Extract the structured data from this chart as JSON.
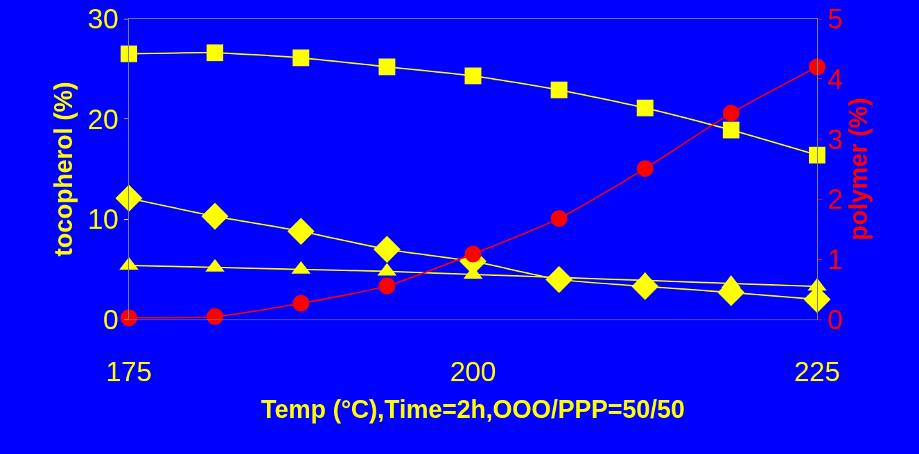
{
  "chart_data": {
    "type": "line",
    "xlabel": "Temp (°C),Time=2h,OOO/PPP=50/50",
    "ylabel": "tocopherol (%)",
    "y2label": "polymer (%)",
    "x": [
      175,
      181.25,
      187.5,
      193.75,
      200,
      206.25,
      212.5,
      218.75,
      225
    ],
    "xlim": [
      175,
      225
    ],
    "xticks": [
      175,
      200,
      225
    ],
    "ylim": [
      0,
      30
    ],
    "yticks": [
      0,
      10,
      20,
      30
    ],
    "y2lim": [
      0,
      5
    ],
    "y2ticks": [
      0,
      1,
      2,
      3,
      4,
      5
    ],
    "grid": false,
    "series": [
      {
        "color": "#ffff00",
        "marker": "square",
        "values": [
          26.5,
          26.6,
          26.1,
          25.2,
          24.3,
          22.9,
          21.1,
          18.9,
          16.4
        ]
      },
      {
        "color": "#ffff00",
        "marker": "diamond",
        "values": [
          12.1,
          10.3,
          8.8,
          7.0,
          5.8,
          4.0,
          3.3,
          2.7,
          2.0
        ]
      },
      {
        "color": "#ffff00",
        "marker": "triangle",
        "values": [
          5.4,
          5.2,
          5.0,
          4.8,
          4.5,
          4.2,
          3.9,
          3.6,
          3.3
        ]
      },
      {
        "color": "#ff0000",
        "marker": "circle",
        "axis": "y2",
        "values": [
          0.03,
          0.05,
          0.27,
          0.56,
          1.09,
          1.68,
          2.51,
          3.43,
          4.2
        ]
      }
    ]
  }
}
